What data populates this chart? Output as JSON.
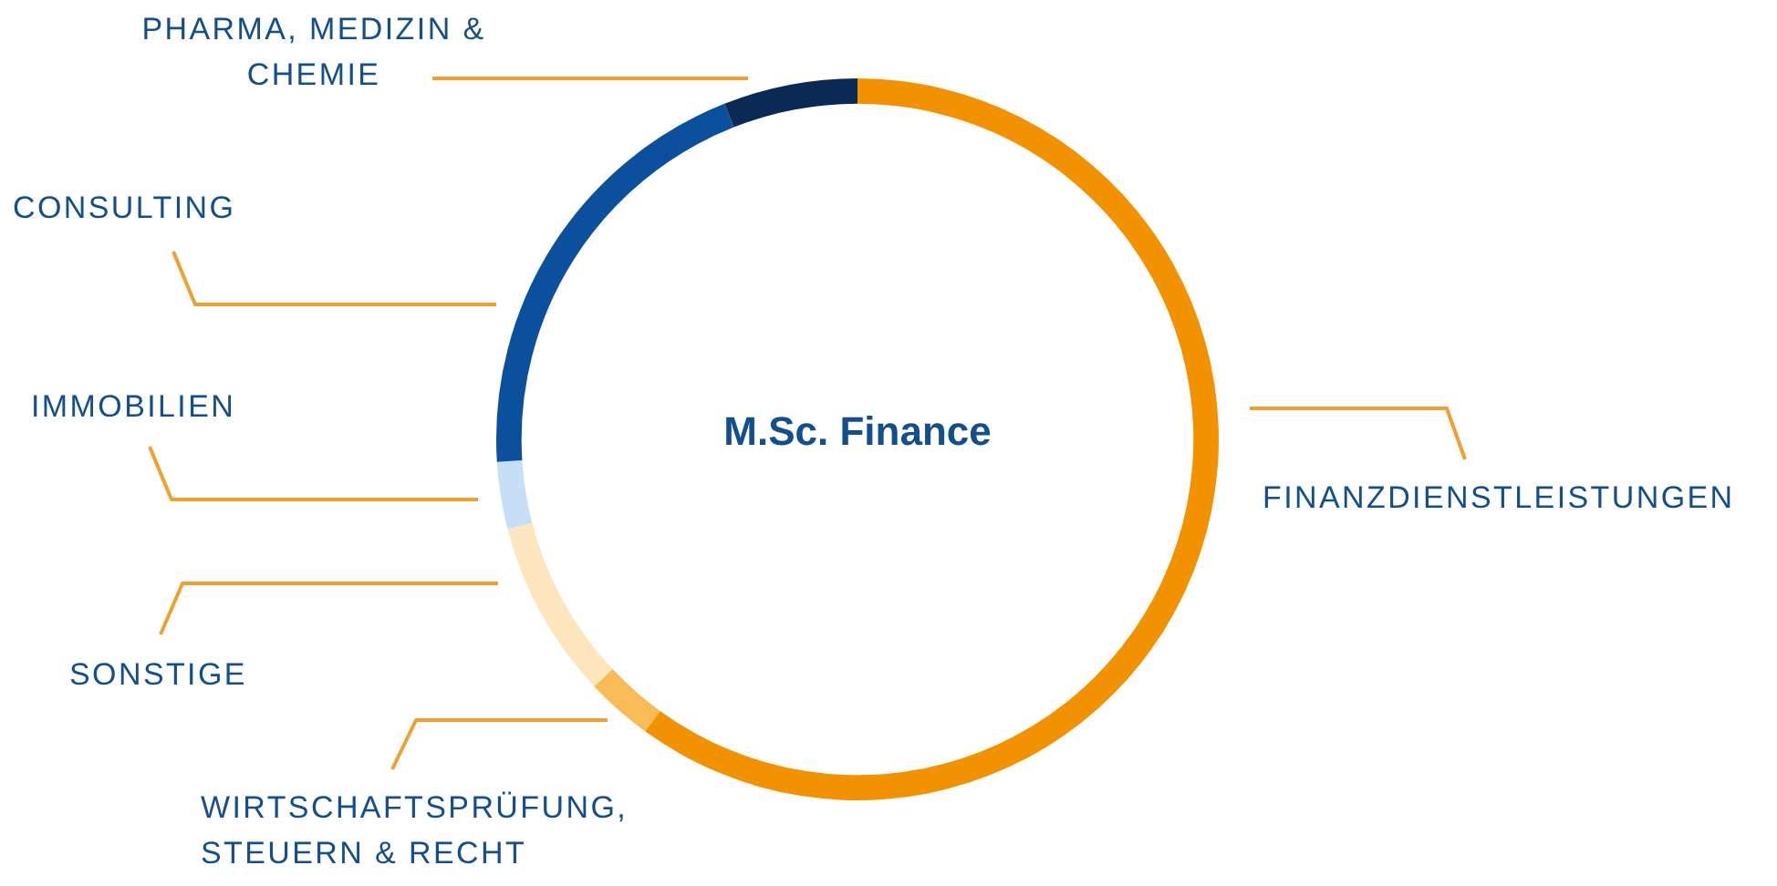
{
  "chart_data": {
    "type": "donut",
    "title": "M.Sc. Finance",
    "categories": [
      "FINANZDIENSTLEISTUNGEN",
      "WIRTSCHAFTSPRÜFUNG, STEUERN & RECHT",
      "SONSTIGE",
      "IMMOBILIEN",
      "CONSULTING",
      "PHARMA, MEDIZIN & CHEMIE"
    ],
    "values": [
      60,
      3,
      8,
      3,
      20,
      6
    ],
    "colors": [
      "#f39200",
      "#f8bb55",
      "#fde6bd",
      "#c6def6",
      "#0b509d",
      "#0a2a55"
    ]
  }
}
